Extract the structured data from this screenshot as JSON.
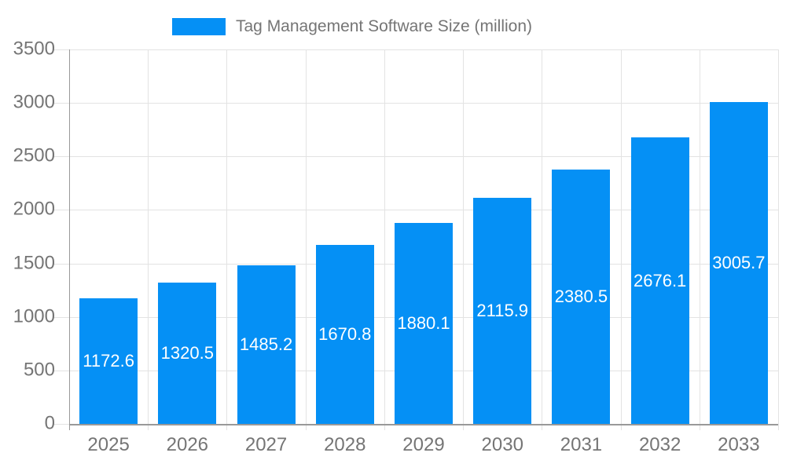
{
  "legend": {
    "label": "Tag Management Software Size (million)"
  },
  "colors": {
    "bar": "#0590f5",
    "axis_line": "#999999",
    "grid_line": "#e3e3e3",
    "label_text": "#757575",
    "bar_label_text": "#ffffff",
    "background": "#ffffff"
  },
  "chart_data": {
    "type": "bar",
    "title": "Tag Management Software Size (million)",
    "categories": [
      "2025",
      "2026",
      "2027",
      "2028",
      "2029",
      "2030",
      "2031",
      "2032",
      "2033"
    ],
    "values": [
      1172.6,
      1320.5,
      1485.2,
      1670.8,
      1880.1,
      2115.9,
      2380.5,
      2676.1,
      3005.7
    ],
    "value_labels": [
      "1172.6",
      "1320.5",
      "1485.2",
      "1670.8",
      "1880.1",
      "2115.9",
      "2380.5",
      "2676.1",
      "3005.7"
    ],
    "series_name": "Tag Management Software Size (million)",
    "xlabel": "",
    "ylabel": "",
    "ylim": [
      0,
      3500
    ],
    "ytick_step": 500,
    "yticks": [
      0,
      500,
      1000,
      1500,
      2000,
      2500,
      3000,
      3500
    ],
    "grid": true,
    "legend_position": "top",
    "bar_label_position": "inside-center"
  }
}
